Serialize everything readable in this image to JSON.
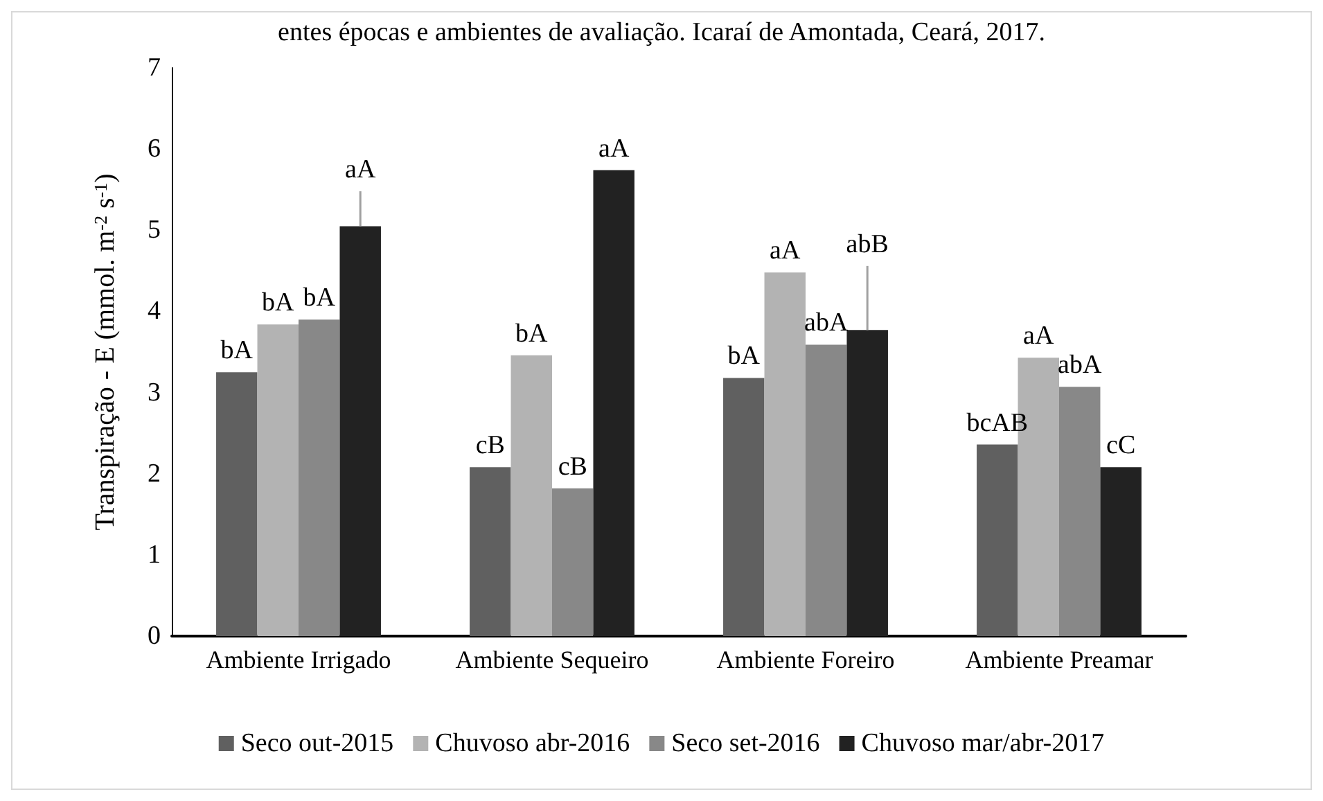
{
  "chart_data": {
    "type": "bar",
    "title": "entes épocas e ambientes de avaliação. Icaraí de Amontada, Ceará, 2017.",
    "ylabel": "Transpiração - E (mmol. m$^{-2}$ s$^{-1}$)",
    "categories": [
      "Ambiente Irrigado",
      "Ambiente Sequeiro",
      "Ambiente Foreiro",
      "Ambiente Preamar"
    ],
    "series": [
      {
        "name": "Seco out-2015",
        "color": "#606060",
        "values": [
          3.25,
          2.08,
          3.18,
          2.36
        ],
        "value_labels": [
          "bA",
          "cB",
          "bA",
          "bcAB"
        ]
      },
      {
        "name": "Chuvoso abr-2016",
        "color": "#b3b3b3",
        "values": [
          3.84,
          3.46,
          4.48,
          3.43
        ],
        "value_labels": [
          "bA",
          "bA",
          "aA",
          "aA"
        ]
      },
      {
        "name": "Seco set-2016",
        "color": "#888888",
        "values": [
          3.9,
          1.82,
          3.59,
          3.07
        ],
        "value_labels": [
          "bA",
          "cB",
          "abA",
          "abA"
        ]
      },
      {
        "name": "Chuvoso mar/abr-2017",
        "color": "#222222",
        "values": [
          5.05,
          5.74,
          3.77,
          2.08
        ],
        "value_labels": [
          "aA",
          "aA",
          "abB",
          "cC"
        ],
        "errors": [
          [
            5.05,
            5.48
          ],
          null,
          [
            3.77,
            4.56
          ],
          null
        ]
      }
    ],
    "ylim": [
      0,
      7
    ],
    "yticks": [
      0,
      1,
      2,
      3,
      4,
      5,
      6,
      7
    ],
    "grid": false,
    "legend": "bottom"
  }
}
